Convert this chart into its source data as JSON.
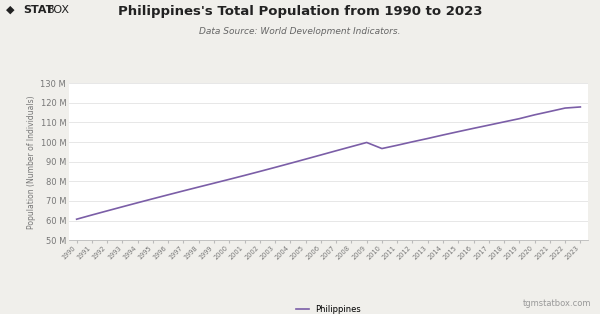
{
  "title": "Philippines's Total Population from 1990 to 2023",
  "subtitle": "Data Source: World Development Indicators.",
  "ylabel": "Population (Number of Individuals)",
  "line_color": "#7B5EA7",
  "legend_label": "Philippines",
  "background_color": "#f0efeb",
  "plot_bg_color": "#ffffff",
  "years": [
    1990,
    1991,
    1992,
    1993,
    1994,
    1995,
    1996,
    1997,
    1998,
    1999,
    2000,
    2001,
    2002,
    2003,
    2004,
    2005,
    2006,
    2007,
    2008,
    2009,
    2010,
    2011,
    2012,
    2013,
    2014,
    2015,
    2016,
    2017,
    2018,
    2019,
    2020,
    2021,
    2022,
    2023
  ],
  "population": [
    60703,
    62854,
    64953,
    67037,
    69099,
    71140,
    73154,
    75148,
    77119,
    79067,
    81026,
    83014,
    85043,
    87103,
    89193,
    91310,
    93440,
    95582,
    97694,
    99800,
    96707,
    98381,
    100145,
    101834,
    103613,
    105323,
    107006,
    108640,
    110291,
    111933,
    113880,
    115590,
    117337,
    117900
  ],
  "ylim_min": 50000,
  "ylim_max": 130000,
  "yticks": [
    50000,
    60000,
    70000,
    80000,
    90000,
    100000,
    110000,
    120000,
    130000
  ],
  "ytick_labels": [
    "50 M",
    "60 M",
    "70 M",
    "80 M",
    "90 M",
    "100 M",
    "110 M",
    "120 M",
    "130 M"
  ],
  "watermark": "tgmstatbox.com",
  "title_fontsize": 9.5,
  "subtitle_fontsize": 6.5,
  "ylabel_fontsize": 5.5,
  "ytick_fontsize": 6,
  "xtick_fontsize": 4.8,
  "legend_fontsize": 6,
  "watermark_fontsize": 6
}
